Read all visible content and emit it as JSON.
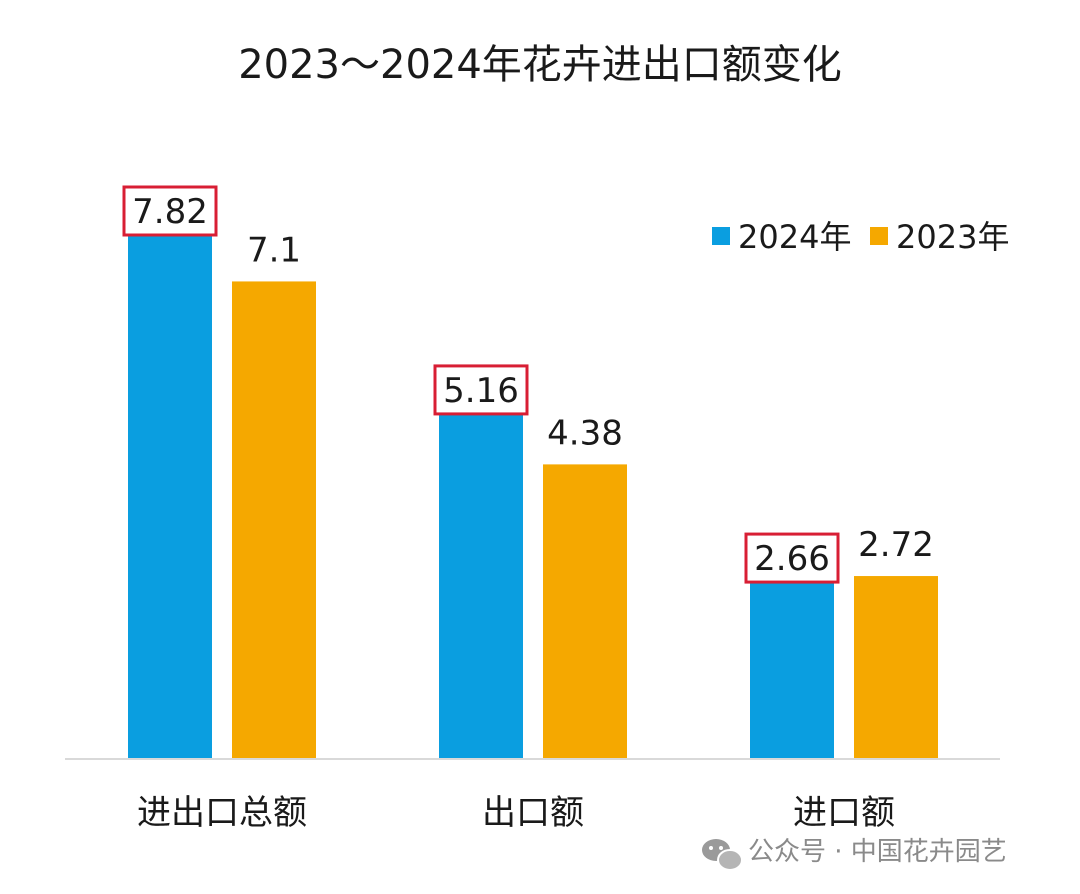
{
  "chart_data": {
    "type": "bar",
    "title": "2023～2024年花卉进出口额变化",
    "categories": [
      "进出口总额",
      "出口额",
      "进口额"
    ],
    "series": [
      {
        "name": "2024年",
        "values": [
          7.82,
          5.16,
          2.66
        ],
        "color": "#0a9ee0",
        "highlight": true
      },
      {
        "name": "2023年",
        "values": [
          7.1,
          4.38,
          2.72
        ],
        "color": "#f5a800"
      }
    ],
    "ylim": [
      0,
      7.82
    ],
    "grid": false,
    "legend": "top-right",
    "highlight_color": "#d81e34"
  },
  "watermark": {
    "icon": "wechat-icon",
    "text": "公众号 · 中国花卉园艺"
  }
}
